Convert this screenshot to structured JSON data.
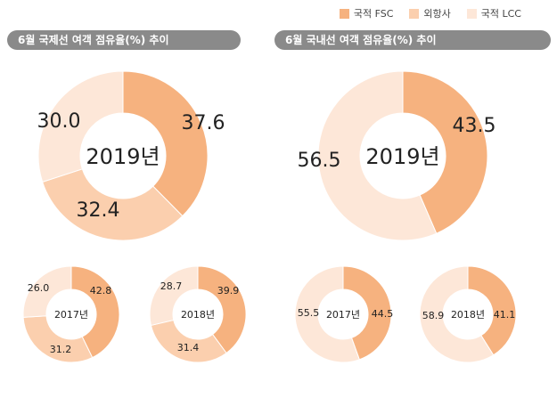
{
  "legend": [
    {
      "label": "국적 FSC",
      "color": "#f6b27f"
    },
    {
      "label": "외항사",
      "color": "#fbcfae"
    },
    {
      "label": "국적 LCC",
      "color": "#fde7d8"
    }
  ],
  "panels": {
    "left_title": "6월 국제선 여객 점유율(%) 추이",
    "right_title": "6월 국내선 여객 점유율(%) 추이"
  },
  "chart_data": [
    {
      "type": "pie",
      "group": "국제선",
      "center_label": "2019년",
      "series": [
        {
          "name": "국적 FSC",
          "value": 37.6
        },
        {
          "name": "외항사",
          "value": 32.4
        },
        {
          "name": "국적 LCC",
          "value": 30.0
        }
      ],
      "value_labels": [
        "37.6",
        "32.4",
        "30.0"
      ]
    },
    {
      "type": "pie",
      "group": "국제선",
      "center_label": "2017년",
      "series": [
        {
          "name": "국적 FSC",
          "value": 42.8
        },
        {
          "name": "외항사",
          "value": 31.2
        },
        {
          "name": "국적 LCC",
          "value": 26.0
        }
      ],
      "value_labels": [
        "42.8",
        "31.2",
        "26.0"
      ]
    },
    {
      "type": "pie",
      "group": "국제선",
      "center_label": "2018년",
      "series": [
        {
          "name": "국적 FSC",
          "value": 39.9
        },
        {
          "name": "외항사",
          "value": 31.4
        },
        {
          "name": "국적 LCC",
          "value": 28.7
        }
      ],
      "value_labels": [
        "39.9",
        "31.4",
        "28.7"
      ]
    },
    {
      "type": "pie",
      "group": "국내선",
      "center_label": "2019년",
      "series": [
        {
          "name": "국적 FSC",
          "value": 43.5
        },
        {
          "name": "국적 LCC",
          "value": 56.5
        }
      ],
      "value_labels": [
        "43.5",
        "56.5"
      ]
    },
    {
      "type": "pie",
      "group": "국내선",
      "center_label": "2017년",
      "series": [
        {
          "name": "국적 FSC",
          "value": 44.5
        },
        {
          "name": "국적 LCC",
          "value": 55.5
        }
      ],
      "value_labels": [
        "44.5",
        "55.5"
      ]
    },
    {
      "type": "pie",
      "group": "국내선",
      "center_label": "2018년",
      "series": [
        {
          "name": "국적 FSC",
          "value": 41.1
        },
        {
          "name": "국적 LCC",
          "value": 58.9
        }
      ],
      "value_labels": [
        "41.1",
        "58.9"
      ]
    }
  ]
}
